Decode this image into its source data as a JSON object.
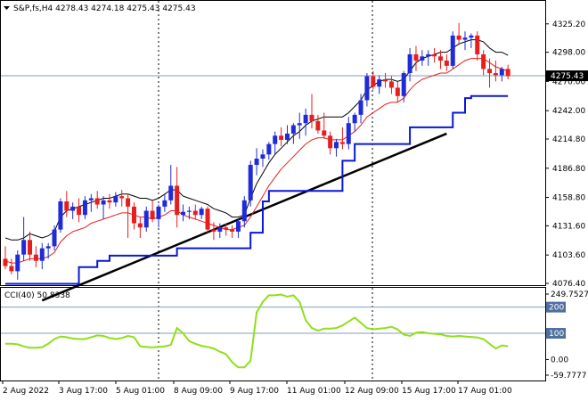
{
  "header": {
    "symbol_line": "S&P,fs,H4  4278.43 4274.18 4275.43 4275.43"
  },
  "cci_header": {
    "label": "CCI(40) 50.8338"
  },
  "colors": {
    "bull": "#1f2bd8",
    "bear": "#e81e1e",
    "doji": "#2fae2f",
    "bb_upper": "#000000",
    "bb_mid": "#e81e1e",
    "band_lower": "#0a18d6",
    "trend": "#000000",
    "cci": "#8fe01a",
    "level": "#7f9fbf",
    "price_box": "#000000"
  },
  "chart_data": [
    {
      "type": "candlestick",
      "title": "S&P,fs,H4",
      "current_price": "4275.43",
      "y_ticks": [
        "4325.20",
        "4298.00",
        "4270.00",
        "4242.00",
        "4214.80",
        "4186.80",
        "4158.80",
        "4131.60",
        "4103.60",
        "4076.40"
      ],
      "ylim": [
        4076.4,
        4331
      ],
      "x_tick_labels": [
        "2 Aug 2022",
        "3 Aug 17:00",
        "5 Aug 01:00",
        "8 Aug 09:00",
        "9 Aug 17:00",
        "11 Aug 01:00",
        "12 Aug 09:00",
        "15 Aug 17:00",
        "17 Aug 01:00"
      ],
      "candles": [
        [
          4100,
          4112,
          4090,
          4093
        ],
        [
          4093,
          4100,
          4085,
          4088
        ],
        [
          4088,
          4108,
          4080,
          4104
        ],
        [
          4104,
          4140,
          4098,
          4118
        ],
        [
          4118,
          4126,
          4098,
          4104
        ],
        [
          4104,
          4112,
          4092,
          4098
        ],
        [
          4098,
          4115,
          4090,
          4110
        ],
        [
          4110,
          4115,
          4100,
          4112
        ],
        [
          4112,
          4132,
          4108,
          4128
        ],
        [
          4128,
          4158,
          4125,
          4155
        ],
        [
          4155,
          4165,
          4140,
          4146
        ],
        [
          4146,
          4154,
          4138,
          4150
        ],
        [
          4150,
          4158,
          4135,
          4142
        ],
        [
          4142,
          4160,
          4138,
          4156
        ],
        [
          4156,
          4162,
          4145,
          4158
        ],
        [
          4158,
          4165,
          4148,
          4152
        ],
        [
          4152,
          4160,
          4138,
          4156
        ],
        [
          4156,
          4162,
          4148,
          4154
        ],
        [
          4154,
          4164,
          4150,
          4160
        ],
        [
          4160,
          4166,
          4150,
          4158
        ],
        [
          4158,
          4162,
          4120,
          4150
        ],
        [
          4150,
          4154,
          4128,
          4134
        ],
        [
          4134,
          4140,
          4120,
          4130
        ],
        [
          4130,
          4150,
          4126,
          4146
        ],
        [
          4146,
          4156,
          4135,
          4138
        ],
        [
          4138,
          4152,
          4130,
          4150
        ],
        [
          4150,
          4162,
          4145,
          4156
        ],
        [
          4156,
          4190,
          4152,
          4170
        ],
        [
          4170,
          4188,
          4130,
          4142
        ],
        [
          4142,
          4152,
          4136,
          4145
        ],
        [
          4145,
          4150,
          4138,
          4146
        ],
        [
          4146,
          4152,
          4138,
          4142
        ],
        [
          4142,
          4150,
          4138,
          4148
        ],
        [
          4148,
          4150,
          4125,
          4128
        ],
        [
          4128,
          4135,
          4118,
          4126
        ],
        [
          4126,
          4134,
          4120,
          4130
        ],
        [
          4130,
          4134,
          4122,
          4128
        ],
        [
          4128,
          4132,
          4120,
          4126
        ],
        [
          4126,
          4138,
          4120,
          4136
        ],
        [
          4136,
          4160,
          4130,
          4156
        ],
        [
          4156,
          4194,
          4150,
          4190
        ],
        [
          4190,
          4206,
          4180,
          4196
        ],
        [
          4196,
          4205,
          4188,
          4200
        ],
        [
          4200,
          4212,
          4195,
          4210
        ],
        [
          4210,
          4222,
          4200,
          4218
        ],
        [
          4218,
          4226,
          4208,
          4214
        ],
        [
          4214,
          4228,
          4210,
          4220
        ],
        [
          4220,
          4230,
          4210,
          4228
        ],
        [
          4228,
          4240,
          4215,
          4230
        ],
        [
          4230,
          4244,
          4218,
          4238
        ],
        [
          4238,
          4258,
          4225,
          4232
        ],
        [
          4232,
          4238,
          4220,
          4223
        ],
        [
          4223,
          4240,
          4215,
          4218
        ],
        [
          4218,
          4222,
          4200,
          4206
        ],
        [
          4206,
          4215,
          4198,
          4212
        ],
        [
          4212,
          4226,
          4205,
          4210
        ],
        [
          4210,
          4236,
          4205,
          4230
        ],
        [
          4230,
          4240,
          4222,
          4238
        ],
        [
          4238,
          4258,
          4230,
          4252
        ],
        [
          4252,
          4278,
          4246,
          4275
        ],
        [
          4275,
          4280,
          4262,
          4265
        ],
        [
          4265,
          4276,
          4258,
          4272
        ],
        [
          4272,
          4278,
          4264,
          4270
        ],
        [
          4270,
          4275,
          4258,
          4264
        ],
        [
          4264,
          4270,
          4250,
          4256
        ],
        [
          4256,
          4280,
          4250,
          4278
        ],
        [
          4278,
          4302,
          4270,
          4296
        ],
        [
          4296,
          4304,
          4280,
          4290
        ],
        [
          4290,
          4300,
          4285,
          4294
        ],
        [
          4294,
          4300,
          4285,
          4296
        ],
        [
          4296,
          4302,
          4288,
          4294
        ],
        [
          4294,
          4300,
          4282,
          4290
        ],
        [
          4290,
          4296,
          4280,
          4285
        ],
        [
          4285,
          4318,
          4282,
          4314
        ],
        [
          4314,
          4326,
          4305,
          4310
        ],
        [
          4310,
          4318,
          4300,
          4312
        ],
        [
          4312,
          4316,
          4302,
          4314
        ],
        [
          4314,
          4318,
          4290,
          4296
        ],
        [
          4296,
          4300,
          4276,
          4282
        ],
        [
          4282,
          4292,
          4264,
          4278
        ],
        [
          4278,
          4290,
          4270,
          4276
        ],
        [
          4276,
          4284,
          4270,
          4282
        ],
        [
          4282,
          4286,
          4272,
          4275
        ]
      ],
      "bb_upper": [
        4120,
        4118,
        4118,
        4120,
        4124,
        4122,
        4120,
        4122,
        4126,
        4140,
        4146,
        4148,
        4150,
        4152,
        4154,
        4156,
        4158,
        4158,
        4160,
        4162,
        4162,
        4160,
        4158,
        4158,
        4156,
        4158,
        4162,
        4166,
        4166,
        4160,
        4158,
        4156,
        4154,
        4152,
        4148,
        4146,
        4144,
        4140,
        4140,
        4142,
        4158,
        4172,
        4182,
        4192,
        4200,
        4206,
        4212,
        4218,
        4222,
        4228,
        4232,
        4234,
        4236,
        4236,
        4236,
        4236,
        4240,
        4246,
        4252,
        4262,
        4266,
        4270,
        4272,
        4272,
        4270,
        4272,
        4280,
        4288,
        4292,
        4294,
        4296,
        4298,
        4298,
        4302,
        4306,
        4308,
        4310,
        4310,
        4308,
        4302,
        4298,
        4298,
        4295
      ],
      "bb_mid": [
        4098,
        4096,
        4096,
        4098,
        4100,
        4100,
        4100,
        4102,
        4106,
        4116,
        4122,
        4126,
        4128,
        4130,
        4134,
        4136,
        4138,
        4140,
        4142,
        4144,
        4144,
        4142,
        4140,
        4140,
        4138,
        4140,
        4142,
        4146,
        4146,
        4142,
        4140,
        4138,
        4136,
        4134,
        4132,
        4130,
        4128,
        4128,
        4130,
        4132,
        4140,
        4150,
        4160,
        4170,
        4178,
        4186,
        4192,
        4198,
        4204,
        4210,
        4214,
        4216,
        4216,
        4214,
        4214,
        4214,
        4218,
        4222,
        4228,
        4236,
        4240,
        4244,
        4248,
        4250,
        4250,
        4254,
        4262,
        4268,
        4272,
        4274,
        4276,
        4278,
        4278,
        4282,
        4286,
        4290,
        4292,
        4292,
        4292,
        4288,
        4284,
        4282,
        4280
      ],
      "band_lower": [
        4076,
        4076,
        4076,
        4076,
        4076,
        4076,
        4076,
        4076,
        4076,
        4076,
        4076,
        4076,
        4092,
        4092,
        4092,
        4098,
        4098,
        4103,
        4103,
        4103,
        4103,
        4103,
        4103,
        4103,
        4103,
        4103,
        4103,
        4103,
        4110,
        4110,
        4110,
        4110,
        4110,
        4110,
        4110,
        4110,
        4110,
        4110,
        4110,
        4110,
        4125,
        4125,
        4155,
        4165,
        4165,
        4165,
        4165,
        4165,
        4165,
        4165,
        4165,
        4165,
        4165,
        4165,
        4165,
        4194,
        4194,
        4210,
        4210,
        4210,
        4210,
        4210,
        4210,
        4210,
        4210,
        4210,
        4226,
        4226,
        4226,
        4226,
        4226,
        4226,
        4226,
        4240,
        4240,
        4254,
        4256,
        4256,
        4256,
        4256,
        4256,
        4256,
        4256
      ],
      "trend_line": [
        [
          6,
          4060
        ],
        [
          72,
          4220
        ]
      ]
    },
    {
      "type": "line",
      "title": "CCI(40) 50.8338",
      "y_ticks": [
        "249.7527",
        "200",
        "100",
        "0.00",
        "-59.7777"
      ],
      "ylim": [
        -59.7777,
        249.7527
      ],
      "levels": [
        200,
        100
      ],
      "values": [
        60,
        60,
        58,
        50,
        45,
        45,
        47,
        60,
        78,
        88,
        85,
        80,
        78,
        78,
        85,
        92,
        90,
        82,
        78,
        82,
        90,
        85,
        50,
        48,
        46,
        48,
        50,
        56,
        120,
        100,
        70,
        60,
        52,
        48,
        42,
        30,
        20,
        -10,
        -30,
        -30,
        -5,
        180,
        220,
        245,
        245,
        248,
        240,
        245,
        220,
        150,
        120,
        110,
        118,
        118,
        120,
        130,
        145,
        160,
        140,
        120,
        115,
        118,
        120,
        125,
        115,
        95,
        90,
        102,
        105,
        100,
        98,
        96,
        90,
        88,
        90,
        88,
        86,
        84,
        78,
        60,
        42,
        54,
        50.8338
      ]
    }
  ]
}
